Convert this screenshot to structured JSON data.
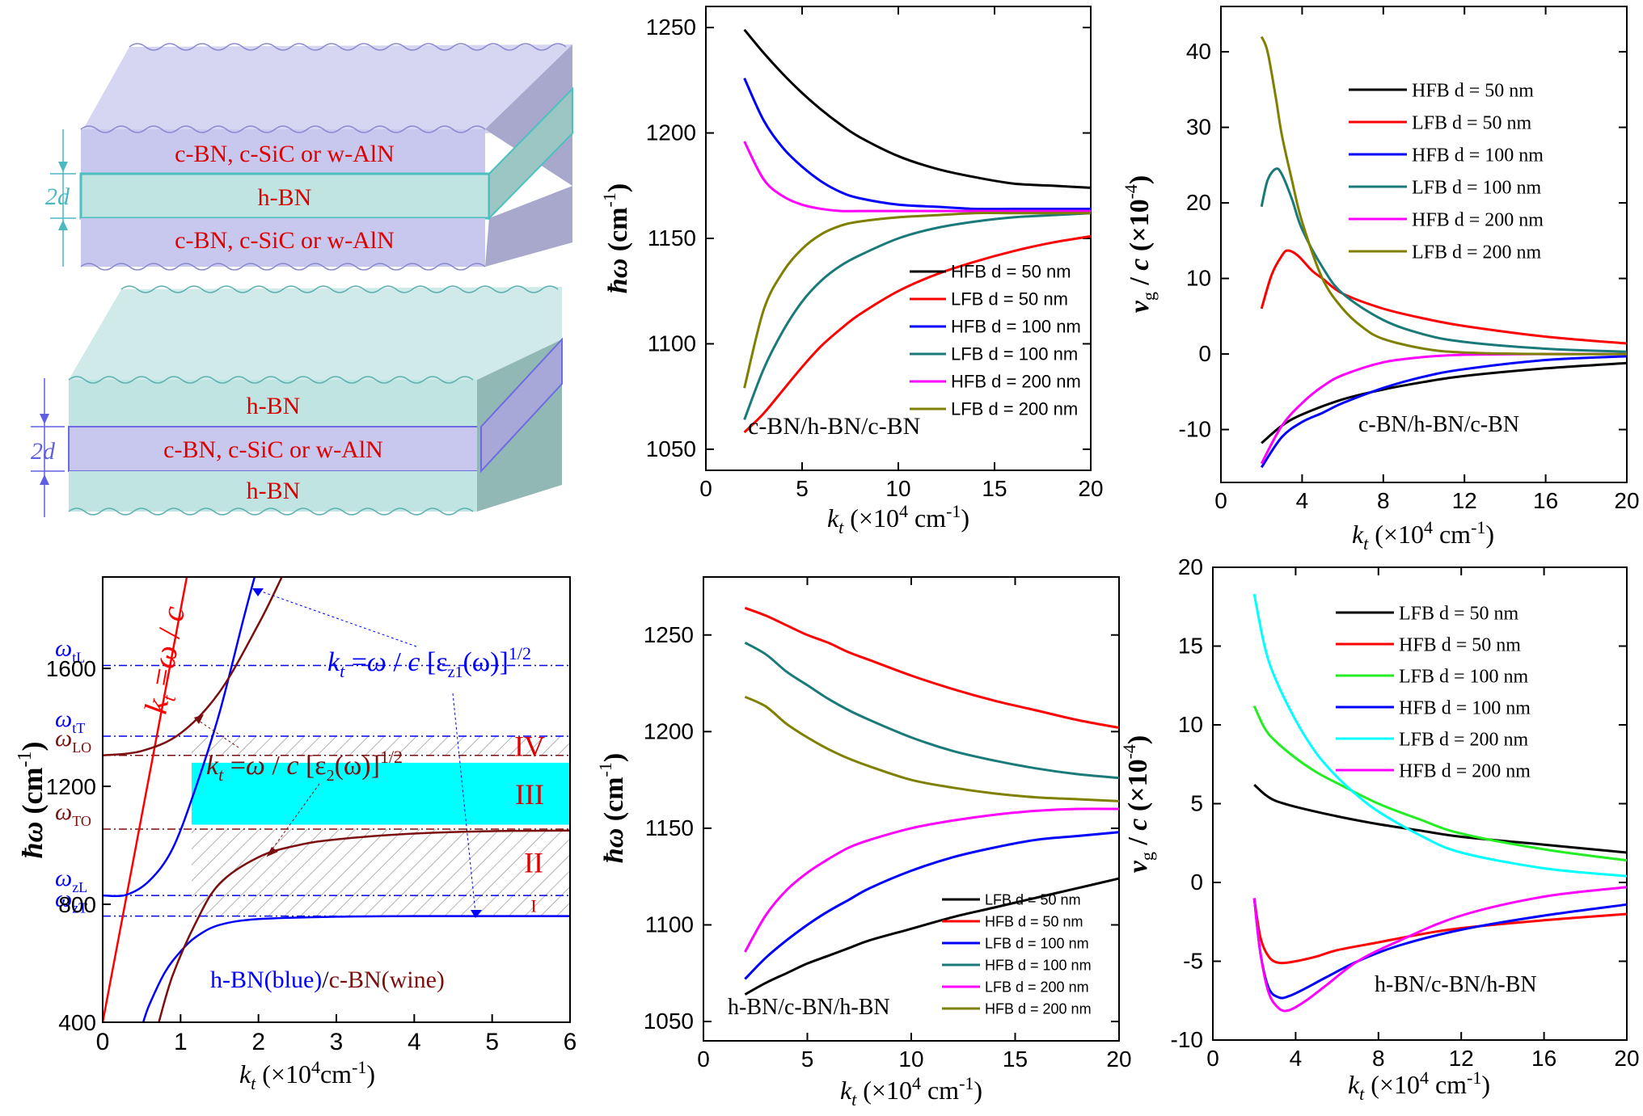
{
  "colors": {
    "black": "#000000",
    "red": "#ff0000",
    "blue": "#0000ff",
    "teal": "#1a7a7a",
    "magenta": "#ff00ff",
    "olive": "#808000",
    "green": "#22ee22",
    "cyan": "#00ffff",
    "wine": "#7b0f0f",
    "slab_purple": "#c8c8ee",
    "slab_teal": "#bfe4e2",
    "band_cyan": "#00ffff"
  },
  "schematics": {
    "top": {
      "outer_layer_label": "c-BN, c-SiC or w-AlN",
      "middle_layer_label": "h-BN",
      "bottom_layer_label": "c-BN, c-SiC or w-AlN",
      "thickness_label": "2d"
    },
    "bottom": {
      "outer_layer_label": "h-BN",
      "middle_layer_label": "c-BN, c-SiC or w-AlN",
      "bottom_layer_label": "h-BN",
      "thickness_label": "2d"
    }
  },
  "chart_data": [
    {
      "id": "freq_cbn",
      "type": "line",
      "xlabel": "k_t (×10^4 cm^-1)",
      "ylabel": "ħω (cm^-1)",
      "xlim": [
        0,
        20
      ],
      "ylim": [
        1040,
        1260
      ],
      "xticks": [
        0,
        5,
        10,
        15,
        20
      ],
      "yticks": [
        1050,
        1100,
        1150,
        1200,
        1250
      ],
      "annotation": "c-BN/h-BN/c-BN",
      "legend_position": "lower-right",
      "x": [
        2,
        3,
        4,
        5,
        6,
        7,
        8,
        10,
        12,
        14,
        16,
        18,
        20
      ],
      "series": [
        {
          "name": "HFB d = 50 nm",
          "color": "#000000",
          "values": [
            1249,
            1238,
            1228,
            1219,
            1211,
            1204,
            1198,
            1189,
            1183,
            1179,
            1176,
            1175,
            1174
          ]
        },
        {
          "name": "LFB d = 50 nm",
          "color": "#ff0000",
          "values": [
            1058,
            1067,
            1078,
            1089,
            1099,
            1107,
            1114,
            1125,
            1133,
            1139,
            1144,
            1148,
            1151
          ]
        },
        {
          "name": "HFB d = 100 nm",
          "color": "#0000ff",
          "values": [
            1226,
            1206,
            1193,
            1184,
            1177,
            1172,
            1169,
            1166,
            1165,
            1164,
            1164,
            1164,
            1164
          ]
        },
        {
          "name": "LFB d = 100 nm",
          "color": "#1a7a7a",
          "values": [
            1064,
            1088,
            1106,
            1120,
            1130,
            1137,
            1142,
            1150,
            1155,
            1158,
            1160,
            1161,
            1162
          ]
        },
        {
          "name": "HFB d = 200 nm",
          "color": "#ff00ff",
          "values": [
            1196,
            1178,
            1170,
            1166,
            1164,
            1163,
            1163,
            1163,
            1163,
            1163,
            1163,
            1163,
            1163
          ]
        },
        {
          "name": "LFB d = 200 nm",
          "color": "#808000",
          "values": [
            1079,
            1116,
            1134,
            1145,
            1152,
            1156,
            1158,
            1160,
            1161,
            1162,
            1162,
            1162,
            1162
          ]
        }
      ]
    },
    {
      "id": "vg_cbn",
      "type": "line",
      "xlabel": "k_t (×10^4 cm^-1)",
      "ylabel": "v_g / c (×10^-4)",
      "xlim": [
        0,
        20
      ],
      "ylim": [
        -17,
        46
      ],
      "xticks": [
        0,
        4,
        8,
        12,
        16,
        20
      ],
      "yticks": [
        -10,
        0,
        10,
        20,
        30,
        40
      ],
      "annotation": "c-BN/h-BN/c-BN",
      "legend_position": "top-right",
      "series": [
        {
          "name": "HFB d = 50 nm",
          "color": "#000000",
          "x": [
            2,
            3,
            4,
            6,
            8,
            10,
            12,
            16,
            20
          ],
          "values": [
            -11.8,
            -9.5,
            -8,
            -6,
            -4.7,
            -3.7,
            -2.9,
            -1.9,
            -1.2
          ]
        },
        {
          "name": "LFB d = 50 nm",
          "color": "#ff0000",
          "x": [
            2,
            2.5,
            3,
            3.3,
            3.8,
            4.5,
            5,
            6,
            8,
            10,
            12,
            16,
            20
          ],
          "values": [
            6,
            10.5,
            13,
            13.7,
            13,
            11,
            10,
            8,
            6,
            4.7,
            3.7,
            2.3,
            1.4
          ]
        },
        {
          "name": "HFB d = 100 nm",
          "color": "#0000ff",
          "x": [
            2,
            3,
            4,
            5,
            6,
            8,
            10,
            12,
            16,
            20
          ],
          "values": [
            -15,
            -11,
            -9,
            -7.8,
            -6.5,
            -4.5,
            -3,
            -2,
            -0.8,
            -0.3
          ]
        },
        {
          "name": "LFB d = 100 nm",
          "color": "#1a7a7a",
          "x": [
            2,
            2.3,
            2.7,
            3,
            3.5,
            4,
            5,
            6,
            8,
            10,
            12,
            16,
            20
          ],
          "values": [
            19.5,
            23,
            24.5,
            23.8,
            20.5,
            16.5,
            11.5,
            8,
            4.5,
            2.6,
            1.6,
            0.7,
            0.3
          ]
        },
        {
          "name": "HFB d = 200 nm",
          "color": "#ff00ff",
          "x": [
            2,
            3,
            4,
            5,
            6,
            8,
            10,
            12,
            16,
            20
          ],
          "values": [
            -14.5,
            -9.5,
            -6.5,
            -4.3,
            -2.8,
            -1.1,
            -0.4,
            -0.1,
            0,
            0
          ]
        },
        {
          "name": "LFB d = 200 nm",
          "color": "#808000",
          "x": [
            2,
            2.3,
            2.7,
            3,
            3.5,
            4,
            5,
            6,
            7,
            8,
            10,
            12,
            16,
            20
          ],
          "values": [
            42,
            40,
            34,
            29,
            23,
            17.5,
            10,
            6,
            3.5,
            2,
            0.7,
            0.2,
            0,
            0
          ]
        }
      ]
    },
    {
      "id": "bands",
      "type": "line",
      "xlabel": "k_t (×10^4cm^-1)",
      "ylabel": "ħω (cm^-1)",
      "xlim": [
        0,
        6
      ],
      "ylim": [
        400,
        1910
      ],
      "xticks": [
        0,
        1,
        2,
        3,
        4,
        5,
        6
      ],
      "yticks": [
        400,
        800,
        1200,
        1600
      ],
      "annotation": "h-BN(blue)/c-BN(wine)",
      "reference_lines": [
        {
          "label": "ωtL",
          "value": 1610,
          "color": "#0000ff"
        },
        {
          "label": "ωtT",
          "value": 1370,
          "color": "#0000ff"
        },
        {
          "label": "ωLO",
          "value": 1305,
          "color": "#7b0f0f"
        },
        {
          "label": "ωTO",
          "value": 1055,
          "color": "#7b0f0f"
        },
        {
          "label": "ωzL",
          "value": 830,
          "color": "#0000ff"
        },
        {
          "label": "ωzT",
          "value": 760,
          "color": "#0000ff"
        }
      ],
      "regions": [
        {
          "label": "IV",
          "from": 1305,
          "to": 1370,
          "hatched": true
        },
        {
          "label": "III",
          "from": 1070,
          "to": 1280,
          "fill": "#00ffff"
        },
        {
          "label": "II",
          "from": 830,
          "to": 1055,
          "hatched": true
        },
        {
          "label": "I",
          "from": 760,
          "to": 830,
          "hatched": true
        }
      ],
      "curve_labels": {
        "light_line": "k_t = ω / c",
        "hbn_curve": "k_t = ω / c [ε_z1(ω)]^1/2",
        "cbn_curve": "k_t = ω / c [ε_2(ω)]^1/2"
      },
      "series": [
        {
          "name": "light line",
          "color": "#ff0000",
          "x": [
            0,
            1.08
          ],
          "values": [
            400,
            1910
          ]
        },
        {
          "name": "h-BN lower",
          "color": "#0000ff",
          "x": [
            0.52,
            0.6,
            0.8,
            1.0,
            1.2,
            1.5,
            2.0,
            3.0,
            4.0,
            5.0,
            6.0
          ],
          "values": [
            400,
            460,
            570,
            640,
            690,
            730,
            750,
            758,
            760,
            760,
            760
          ]
        },
        {
          "name": "h-BN upper",
          "color": "#0000ff",
          "x": [
            0,
            0.3,
            0.6,
            0.9,
            1.2,
            1.5,
            1.8,
            1.95
          ],
          "values": [
            830,
            832,
            880,
            990,
            1200,
            1450,
            1760,
            1910
          ]
        },
        {
          "name": "c-BN lower",
          "color": "#7b0f0f",
          "x": [
            0.72,
            0.9,
            1.2,
            1.5,
            2.0,
            2.5,
            3.0,
            4.0,
            5.0,
            6.0
          ],
          "values": [
            400,
            560,
            740,
            870,
            960,
            1000,
            1020,
            1040,
            1048,
            1050
          ]
        },
        {
          "name": "c-BN upper",
          "color": "#7b0f0f",
          "x": [
            0,
            0.5,
            1.0,
            1.5,
            2.0,
            2.3
          ],
          "values": [
            1305,
            1320,
            1380,
            1520,
            1750,
            1910
          ]
        }
      ]
    },
    {
      "id": "freq_hbn",
      "type": "line",
      "xlabel": "k_t (×10^4 cm^-1)",
      "ylabel": "ħω (cm^-1)",
      "xlim": [
        0,
        20
      ],
      "ylim": [
        1040,
        1280
      ],
      "xticks": [
        0,
        5,
        10,
        15,
        20
      ],
      "yticks": [
        1050,
        1100,
        1150,
        1200,
        1250
      ],
      "annotation": "h-BN/c-BN/h-BN",
      "legend_position": "lower-right",
      "x": [
        2,
        3,
        4,
        5,
        6,
        7,
        8,
        10,
        12,
        14,
        16,
        18,
        20
      ],
      "series": [
        {
          "name": "LFB d = 50 nm",
          "color": "#000000",
          "values": [
            1064,
            1070,
            1075,
            1080,
            1084,
            1088,
            1092,
            1098,
            1104,
            1109,
            1114,
            1119,
            1124
          ]
        },
        {
          "name": "HFB d = 50 nm",
          "color": "#ff0000",
          "values": [
            1264,
            1260,
            1255,
            1250,
            1246,
            1241,
            1237,
            1229,
            1222,
            1216,
            1211,
            1206,
            1202
          ]
        },
        {
          "name": "LFB d = 100 nm",
          "color": "#0000ff",
          "values": [
            1072,
            1083,
            1092,
            1100,
            1107,
            1113,
            1119,
            1128,
            1135,
            1140,
            1144,
            1146,
            1148
          ]
        },
        {
          "name": "HFB d = 100 nm",
          "color": "#1a7a7a",
          "values": [
            1246,
            1240,
            1231,
            1224,
            1217,
            1211,
            1206,
            1197,
            1190,
            1185,
            1181,
            1178,
            1176
          ]
        },
        {
          "name": "LFB d = 200 nm",
          "color": "#ff00ff",
          "values": [
            1086,
            1105,
            1118,
            1127,
            1134,
            1140,
            1144,
            1150,
            1154,
            1157,
            1159,
            1160,
            1160
          ]
        },
        {
          "name": "HFB d = 200 nm",
          "color": "#808000",
          "values": [
            1218,
            1213,
            1204,
            1197,
            1191,
            1186,
            1182,
            1175,
            1171,
            1168,
            1166,
            1165,
            1164
          ]
        }
      ]
    },
    {
      "id": "vg_hbn",
      "type": "line",
      "xlabel": "k_t (×10^4 cm^-1)",
      "ylabel": "v_g / c (×10^-4)",
      "xlim": [
        0,
        20
      ],
      "ylim": [
        -10,
        20
      ],
      "xticks": [
        0,
        4,
        8,
        12,
        16,
        20
      ],
      "yticks": [
        -10,
        -5,
        0,
        5,
        10,
        15,
        20
      ],
      "annotation": "h-BN/c-BN/h-BN",
      "legend_position": "top-right",
      "series": [
        {
          "name": "LFB d = 50 nm",
          "color": "#000000",
          "x": [
            2,
            2.5,
            3,
            4,
            6,
            8,
            10,
            12,
            16,
            20
          ],
          "values": [
            6.2,
            5.6,
            5.2,
            4.8,
            4.2,
            3.7,
            3.3,
            2.9,
            2.4,
            1.9
          ]
        },
        {
          "name": "HFB d = 50 nm",
          "color": "#ff0000",
          "x": [
            2,
            2.3,
            2.7,
            3.2,
            4,
            5,
            6,
            8,
            10,
            12,
            16,
            20
          ],
          "values": [
            -1,
            -3.5,
            -4.7,
            -5.1,
            -5,
            -4.7,
            -4.3,
            -3.8,
            -3.3,
            -2.9,
            -2.4,
            -2
          ]
        },
        {
          "name": "LFB d = 100 nm",
          "color": "#22ee22",
          "x": [
            2,
            2.5,
            3,
            4,
            5,
            6,
            8,
            10,
            12,
            16,
            20
          ],
          "values": [
            11.2,
            9.8,
            9,
            7.9,
            7,
            6.3,
            5,
            4,
            3.1,
            2.1,
            1.4
          ]
        },
        {
          "name": "HFB d = 100 nm",
          "color": "#0000ff",
          "x": [
            2,
            2.3,
            2.7,
            3.2,
            3.7,
            4.5,
            5.5,
            7,
            9,
            12,
            16,
            20
          ],
          "values": [
            -1,
            -4.5,
            -6.7,
            -7.3,
            -7.2,
            -6.7,
            -6,
            -5,
            -4,
            -3,
            -2.1,
            -1.4
          ]
        },
        {
          "name": "LFB d = 200 nm",
          "color": "#00ffff",
          "x": [
            2,
            2.5,
            3,
            4,
            5,
            6,
            7,
            8,
            10,
            12,
            16,
            20
          ],
          "values": [
            18.3,
            15,
            13,
            10.3,
            8.2,
            6.7,
            5.5,
            4.5,
            3,
            1.9,
            0.9,
            0.4
          ]
        },
        {
          "name": "HFB d = 200 nm",
          "color": "#ff00ff",
          "x": [
            2,
            2.3,
            2.7,
            3.2,
            3.7,
            4.5,
            5.5,
            7,
            9,
            12,
            16,
            20
          ],
          "values": [
            -1,
            -4.5,
            -7,
            -8,
            -8.1,
            -7.5,
            -6.5,
            -5,
            -3.7,
            -2.1,
            -0.9,
            -0.3
          ]
        }
      ]
    }
  ]
}
